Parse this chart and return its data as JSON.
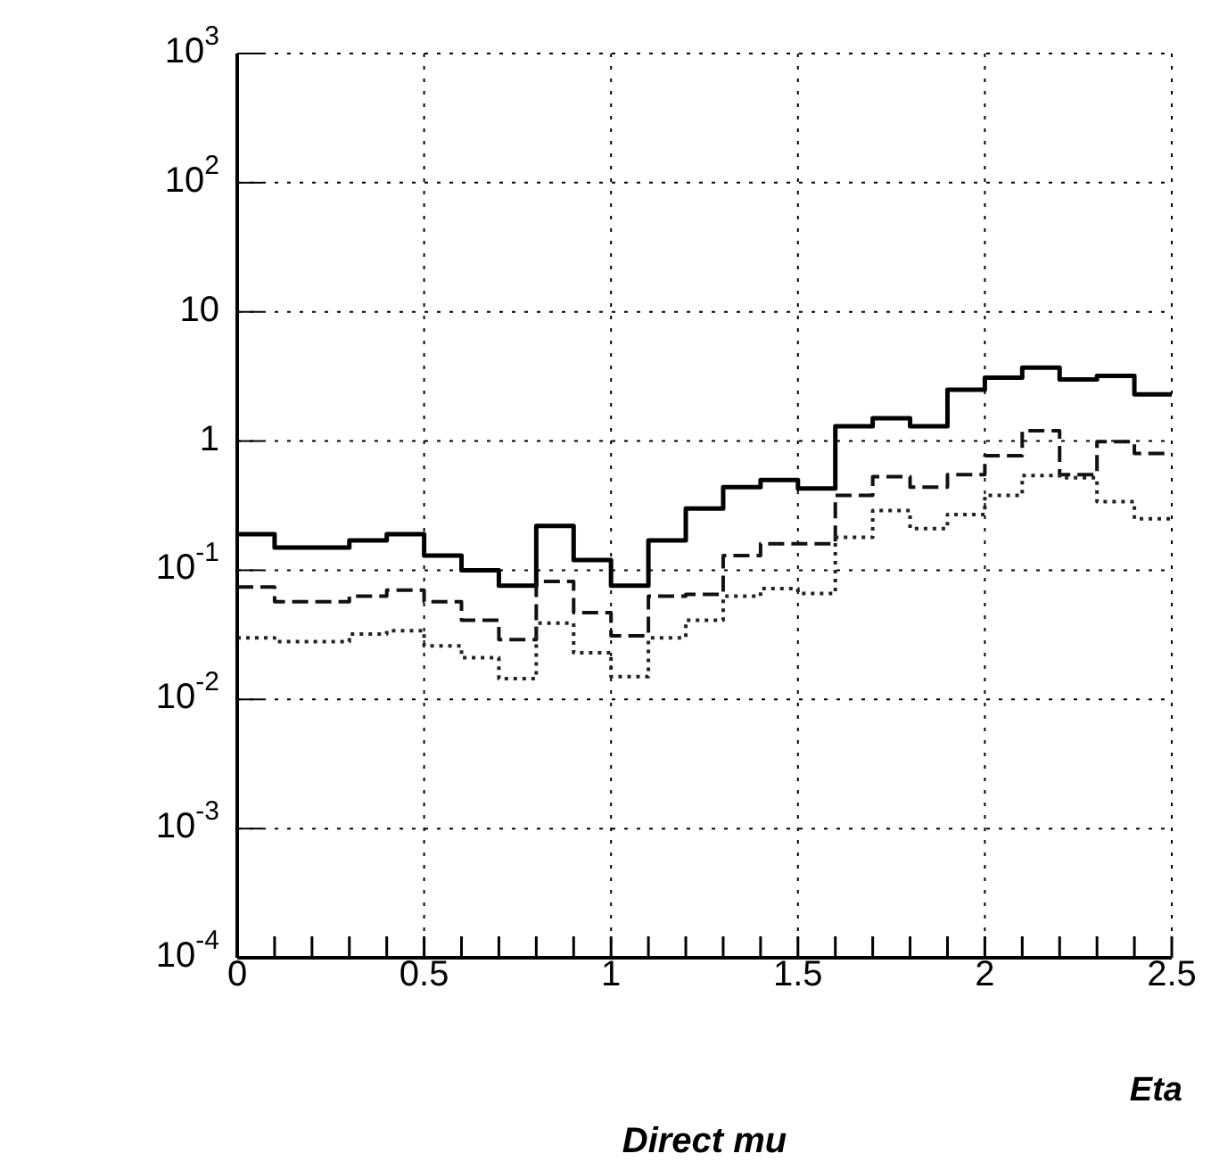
{
  "chart_data": {
    "type": "histogram",
    "title": "Direct mu",
    "xlabel": "Eta",
    "bins": [
      0,
      0.1,
      0.2,
      0.3,
      0.4,
      0.5,
      0.6,
      0.7,
      0.8,
      0.9,
      1,
      1.1,
      1.2,
      1.3,
      1.4,
      1.5,
      1.6,
      1.7,
      1.8,
      1.9,
      2,
      2.1,
      2.2,
      2.3,
      2.4,
      2.5
    ],
    "series": [
      {
        "color": "#000000",
        "line_style": "solid",
        "values": [
          0.19,
          0.15,
          0.15,
          0.17,
          0.19,
          0.13,
          0.1,
          0.076,
          0.22,
          0.12,
          0.076,
          0.17,
          0.3,
          0.44,
          0.5,
          0.43,
          1.3,
          1.5,
          1.3,
          2.5,
          3.1,
          3.7,
          3.0,
          3.2,
          2.3
        ]
      },
      {
        "color": "#111111",
        "line_style": "dashed",
        "values": [
          0.074,
          0.057,
          0.057,
          0.063,
          0.07,
          0.057,
          0.041,
          0.029,
          0.082,
          0.047,
          0.031,
          0.063,
          0.065,
          0.13,
          0.16,
          0.16,
          0.38,
          0.53,
          0.44,
          0.55,
          0.77,
          1.2,
          0.55,
          0.99,
          0.8
        ]
      },
      {
        "color": "#222222",
        "line_style": "dotted",
        "values": [
          0.03,
          0.028,
          0.028,
          0.032,
          0.034,
          0.026,
          0.021,
          0.0145,
          0.039,
          0.023,
          0.015,
          0.03,
          0.041,
          0.063,
          0.072,
          0.066,
          0.18,
          0.29,
          0.21,
          0.27,
          0.38,
          0.54,
          0.52,
          0.34,
          0.25
        ]
      }
    ],
    "xlim": [
      0,
      2.5
    ],
    "xticks": [
      0,
      {
        "value": 0.1,
        "label": null
      },
      {
        "value": 0.2,
        "label": null
      },
      {
        "value": 0.3,
        "label": null
      },
      {
        "value": 0.4,
        "label": null
      },
      0.5,
      {
        "value": 0.6,
        "label": null
      },
      {
        "value": 0.7,
        "label": null
      },
      {
        "value": 0.8,
        "label": null
      },
      {
        "value": 0.9,
        "label": null
      },
      1,
      {
        "value": 1.1,
        "label": null
      },
      {
        "value": 1.2,
        "label": null
      },
      {
        "value": 1.3,
        "label": null
      },
      {
        "value": 1.4,
        "label": null
      },
      1.5,
      {
        "value": 1.6,
        "label": null
      },
      {
        "value": 1.7,
        "label": null
      },
      {
        "value": 1.8,
        "label": null
      },
      {
        "value": 1.9,
        "label": null
      },
      2,
      {
        "value": 2.1,
        "label": null
      },
      {
        "value": 2.2,
        "label": null
      },
      {
        "value": 2.3,
        "label": null
      },
      {
        "value": 2.4,
        "label": null
      },
      2.5
    ],
    "ylim": [
      0.0001,
      1000
    ],
    "yticks": [
      {
        "value": 0.0001,
        "label": "10$^{-4}$"
      },
      {
        "value": 0.001,
        "label": "10$^{-3}$"
      },
      {
        "value": 0.01,
        "label": "10$^{-2}$"
      },
      {
        "value": 0.1,
        "label": "10$^{-1}$"
      },
      1,
      10,
      {
        "value": 100,
        "label": "10$^{2}$"
      },
      {
        "value": 1000,
        "label": "10$^{3}$"
      }
    ],
    "log": true,
    "grid": true,
    "legend": false
  }
}
